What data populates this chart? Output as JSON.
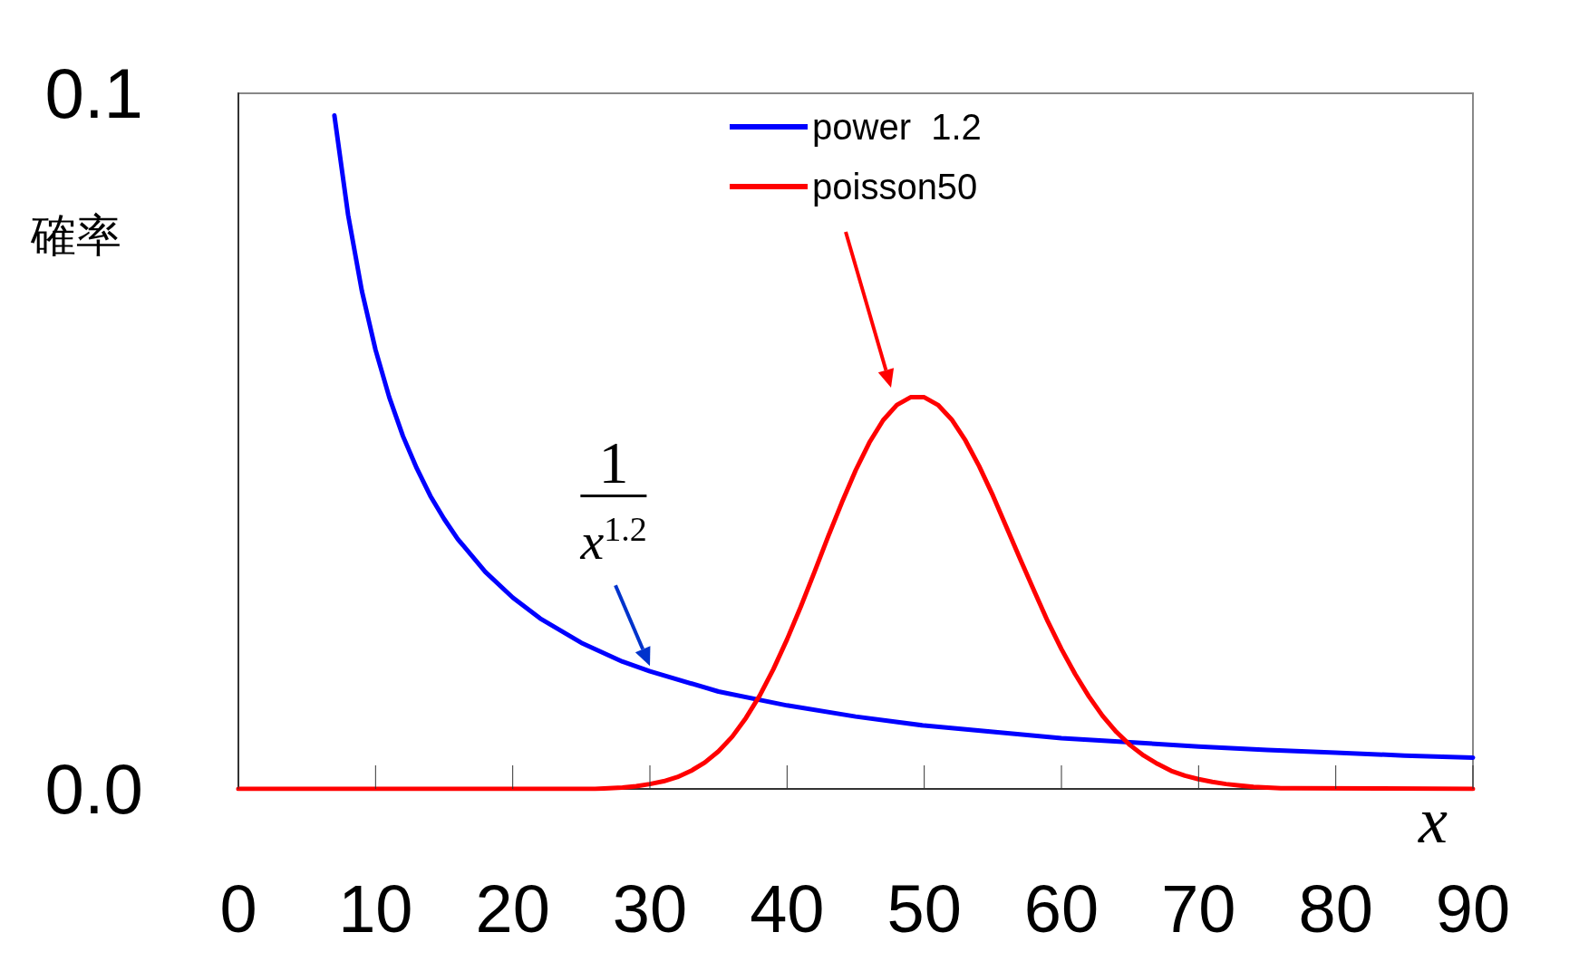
{
  "chart_data": {
    "type": "line",
    "ylabel": "確率",
    "xlabel": "x",
    "xlim": [
      0,
      90
    ],
    "xticks": [
      0,
      10,
      20,
      30,
      40,
      50,
      60,
      70,
      80,
      90
    ],
    "ylim": [
      0,
      0.1
    ],
    "yticks": [
      {
        "value": 0,
        "label": "0.0"
      },
      0.1
    ],
    "grid": false,
    "legend": "top",
    "marker": "none",
    "line_style": "solid",
    "annotations": [
      "1",
      {
        "text": "x$^{1.2}$",
        "x": 30,
        "y": 0.0169
      }
    ],
    "series": [
      {
        "name": "power  1.2",
        "color": "#0000ff",
        "x": [
          7,
          8,
          9,
          10,
          11,
          12,
          13,
          14,
          15,
          16,
          18,
          20,
          22,
          25,
          28,
          30,
          35,
          40,
          45,
          50,
          55,
          60,
          65,
          70,
          75,
          80,
          85,
          90
        ],
        "values": [
          0.0968,
          0.0825,
          0.0716,
          0.0631,
          0.0563,
          0.0507,
          0.0461,
          0.0421,
          0.0388,
          0.0359,
          0.0312,
          0.0275,
          0.0245,
          0.021,
          0.0183,
          0.0169,
          0.014,
          0.012,
          0.0104,
          0.0091,
          0.0082,
          0.0073,
          0.0067,
          0.0061,
          0.0056,
          0.0052,
          0.0048,
          0.0045
        ]
      },
      {
        "name": "poisson50",
        "color": "#ff0000",
        "x": [
          0,
          26,
          27,
          28,
          29,
          30,
          31,
          32,
          33,
          34,
          35,
          36,
          37,
          38,
          39,
          40,
          41,
          42,
          43,
          44,
          45,
          46,
          47,
          48,
          49,
          50,
          51,
          52,
          53,
          54,
          55,
          56,
          57,
          58,
          59,
          60,
          61,
          62,
          63,
          64,
          65,
          66,
          67,
          68,
          69,
          70,
          71,
          72,
          73,
          74,
          75,
          76,
          77,
          90
        ],
        "values": [
          0,
          0,
          0.0001,
          0.0002,
          0.0004,
          0.0007,
          0.0011,
          0.0017,
          0.0026,
          0.0038,
          0.0054,
          0.0075,
          0.0102,
          0.0134,
          0.0172,
          0.0215,
          0.0262,
          0.0312,
          0.0363,
          0.0412,
          0.0458,
          0.0498,
          0.053,
          0.0552,
          0.0563,
          0.0563,
          0.0552,
          0.0531,
          0.0501,
          0.0464,
          0.0422,
          0.0376,
          0.033,
          0.0285,
          0.0241,
          0.0201,
          0.0165,
          0.0133,
          0.0105,
          0.0082,
          0.0063,
          0.0048,
          0.0036,
          0.0026,
          0.0019,
          0.0014,
          0.001,
          0.0007,
          0.0005,
          0.0003,
          0.0002,
          0.0001,
          0.0001,
          0
        ]
      }
    ]
  }
}
